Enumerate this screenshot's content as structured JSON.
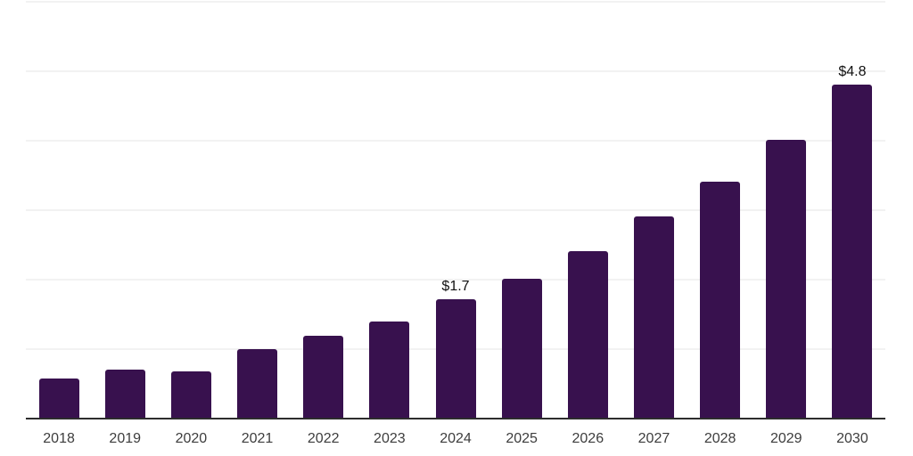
{
  "chart_data": {
    "type": "bar",
    "title": "",
    "xlabel": "",
    "ylabel": "",
    "categories": [
      "2018",
      "2019",
      "2020",
      "2021",
      "2022",
      "2023",
      "2024",
      "2025",
      "2026",
      "2027",
      "2028",
      "2029",
      "2030"
    ],
    "values": [
      0.57,
      0.69,
      0.67,
      0.99,
      1.18,
      1.39,
      1.7,
      2.0,
      2.4,
      2.9,
      3.4,
      4.0,
      4.8
    ],
    "data_labels": [
      "",
      "",
      "",
      "",
      "",
      "",
      "$1.7",
      "",
      "",
      "",
      "",
      "",
      "$4.8"
    ],
    "ylim": [
      0,
      6
    ],
    "gridline_values": [
      1,
      2,
      3,
      4,
      5,
      6
    ],
    "grid": "horizontal",
    "legend": "none",
    "y_tick_labels_shown": false,
    "colors": {
      "bar": "#38114E",
      "axis_line": "#2d2d2d",
      "gridline": "#f2f2f2",
      "tick_label": "#3d3d3d",
      "value_label": "#111111",
      "background": "#ffffff"
    }
  }
}
